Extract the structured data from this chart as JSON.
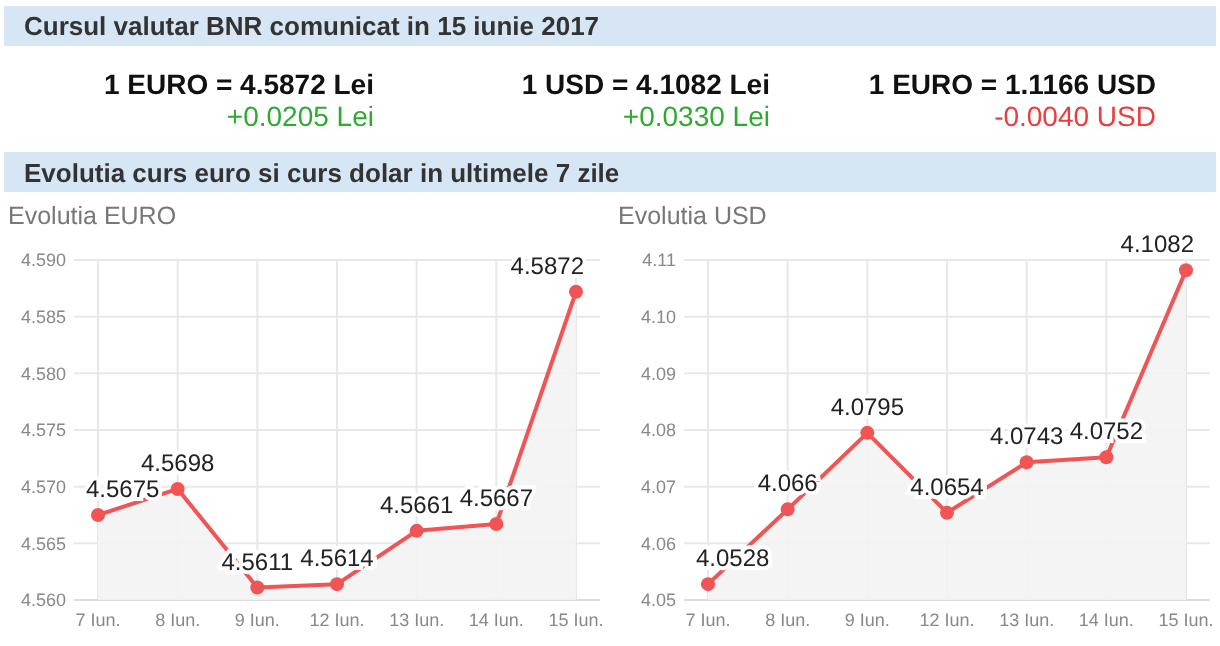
{
  "chart_data": [
    {
      "type": "other",
      "title": "Cursul valutar BNR comunicat in 15 iunie 2017",
      "subtitle": "Evolutia curs euro si curs dolar in ultimele 7 zile",
      "annotations": [
        "1 EURO = 4.5872 Lei",
        "+0.0205 Lei",
        "1 USD = 4.1082 Lei",
        "+0.0330 Lei",
        "1 EURO = 1.1166 USD",
        "-0.0040 USD"
      ],
      "colors": [
        "#111111",
        "#2eaa2e",
        "#111111",
        "#2eaa2e",
        "#111111",
        "#ee3b3b"
      ]
    },
    {
      "type": "area",
      "title": "Evolutia EURO",
      "categories": [
        "7 Iun.",
        "8 Iun.",
        "9 Iun.",
        "12 Iun.",
        "13 Iun.",
        "14 Iun.",
        "15 Iun."
      ],
      "series": [
        {
          "color": "#f05454",
          "values": [
            4.5675,
            4.5698,
            4.5611,
            4.5614,
            4.5661,
            4.5667,
            4.5872
          ]
        }
      ],
      "ylim": [
        4.56,
        4.59
      ],
      "yticks": [
        {
          "value": 4.56,
          "label": "4.560"
        },
        {
          "value": 4.565,
          "label": "4.565"
        },
        {
          "value": 4.57,
          "label": "4.570"
        },
        {
          "value": 4.575,
          "label": "4.575"
        },
        {
          "value": 4.58,
          "label": "4.580"
        },
        {
          "value": 4.585,
          "label": "4.585"
        },
        {
          "value": 4.59,
          "label": "4.590"
        }
      ],
      "grid": true,
      "marker": "circle",
      "data_labels": true
    },
    {
      "type": "area",
      "title": "Evolutia USD",
      "categories": [
        "7 Iun.",
        "8 Iun.",
        "9 Iun.",
        "12 Iun.",
        "13 Iun.",
        "14 Iun.",
        "15 Iun."
      ],
      "series": [
        {
          "color": "#f05454",
          "values": [
            4.0528,
            4.066,
            4.0795,
            4.0654,
            4.0743,
            4.0752,
            4.1082
          ]
        }
      ],
      "ylim": [
        4.05,
        4.11
      ],
      "yticks": [
        {
          "value": 4.05,
          "label": "4.05"
        },
        {
          "value": 4.06,
          "label": "4.06"
        },
        {
          "value": 4.07,
          "label": "4.07"
        },
        {
          "value": 4.08,
          "label": "4.08"
        },
        {
          "value": 4.09,
          "label": "4.09"
        },
        {
          "value": 4.1,
          "label": "4.10"
        },
        {
          "value": 4.11,
          "label": "4.11"
        }
      ],
      "grid": true,
      "marker": "circle",
      "data_labels": true
    }
  ]
}
